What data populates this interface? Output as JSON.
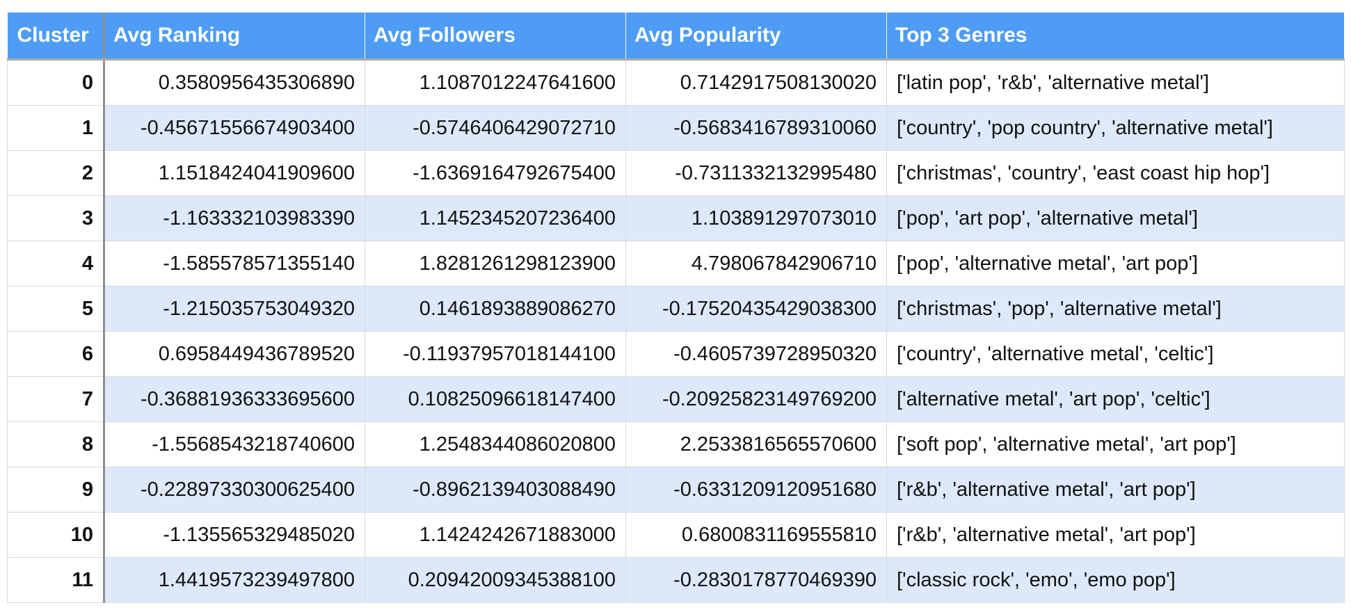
{
  "table": {
    "columns": [
      "Cluster",
      "Avg Ranking",
      "Avg Followers",
      "Avg Popularity",
      "Top 3 Genres"
    ],
    "rows": [
      {
        "cluster": "0",
        "avg_ranking": "0.3580956435306890",
        "avg_followers": "1.1087012247641600",
        "avg_popularity": "0.7142917508130020",
        "top_genres": "['latin pop', 'r&b', 'alternative metal']"
      },
      {
        "cluster": "1",
        "avg_ranking": "-0.45671556674903400",
        "avg_followers": "-0.5746406429072710",
        "avg_popularity": "-0.5683416789310060",
        "top_genres": "['country', 'pop country', 'alternative metal']"
      },
      {
        "cluster": "2",
        "avg_ranking": "1.1518424041909600",
        "avg_followers": "-1.6369164792675400",
        "avg_popularity": "-0.7311332132995480",
        "top_genres": "['christmas', 'country', 'east coast hip hop']"
      },
      {
        "cluster": "3",
        "avg_ranking": "-1.163332103983390",
        "avg_followers": "1.1452345207236400",
        "avg_popularity": "1.103891297073010",
        "top_genres": "['pop', 'art pop', 'alternative metal']"
      },
      {
        "cluster": "4",
        "avg_ranking": "-1.585578571355140",
        "avg_followers": "1.8281261298123900",
        "avg_popularity": "4.798067842906710",
        "top_genres": "['pop', 'alternative metal', 'art pop']"
      },
      {
        "cluster": "5",
        "avg_ranking": "-1.215035753049320",
        "avg_followers": "0.1461893889086270",
        "avg_popularity": "-0.17520435429038300",
        "top_genres": "['christmas', 'pop', 'alternative metal']"
      },
      {
        "cluster": "6",
        "avg_ranking": "0.6958449436789520",
        "avg_followers": "-0.11937957018144100",
        "avg_popularity": "-0.4605739728950320",
        "top_genres": "['country', 'alternative metal', 'celtic']"
      },
      {
        "cluster": "7",
        "avg_ranking": "-0.36881936333695600",
        "avg_followers": "0.10825096618147400",
        "avg_popularity": "-0.20925823149769200",
        "top_genres": "['alternative metal', 'art pop', 'celtic']"
      },
      {
        "cluster": "8",
        "avg_ranking": "-1.5568543218740600",
        "avg_followers": "1.2548344086020800",
        "avg_popularity": "2.2533816565570600",
        "top_genres": "['soft pop', 'alternative metal', 'art pop']"
      },
      {
        "cluster": "9",
        "avg_ranking": "-0.22897330300625400",
        "avg_followers": "-0.8962139403088490",
        "avg_popularity": "-0.6331209120951680",
        "top_genres": "['r&b', 'alternative metal', 'art pop']"
      },
      {
        "cluster": "10",
        "avg_ranking": "-1.135565329485020",
        "avg_followers": "1.1424242671883000",
        "avg_popularity": "0.6800831169555810",
        "top_genres": "['r&b', 'alternative metal', 'art pop']"
      },
      {
        "cluster": "11",
        "avg_ranking": "1.4419573239497800",
        "avg_followers": "0.20942009345388100",
        "avg_popularity": "-0.2830178770469390",
        "top_genres": "['classic rock', 'emo', 'emo pop']"
      }
    ]
  },
  "colors": {
    "header_background": "#4e9cf5",
    "header_text": "#ffffff",
    "alternate_row_background": "#dde9fb",
    "row_background": "#ffffff"
  }
}
